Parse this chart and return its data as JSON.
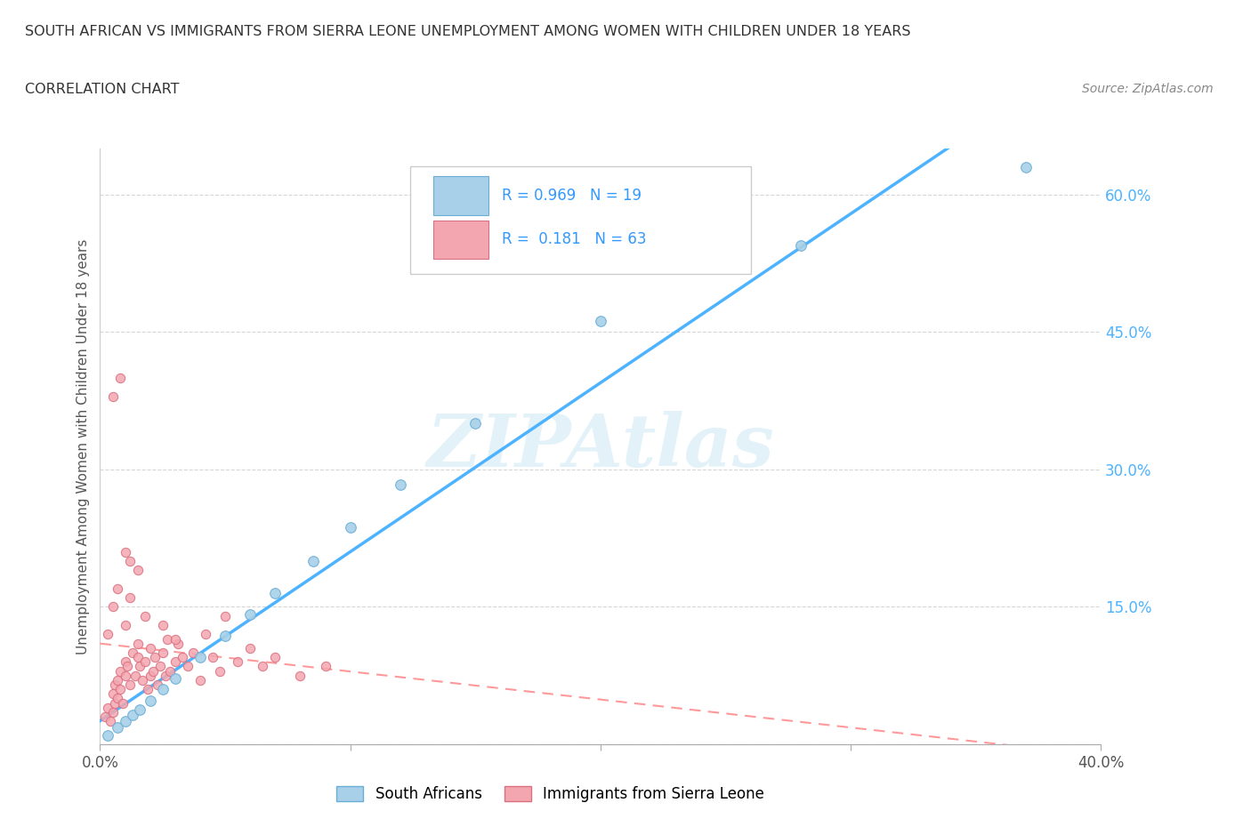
{
  "title": "SOUTH AFRICAN VS IMMIGRANTS FROM SIERRA LEONE UNEMPLOYMENT AMONG WOMEN WITH CHILDREN UNDER 18 YEARS",
  "subtitle": "CORRELATION CHART",
  "source": "Source: ZipAtlas.com",
  "ylabel": "Unemployment Among Women with Children Under 18 years",
  "xlim": [
    0.0,
    0.4
  ],
  "ylim": [
    0.0,
    0.65
  ],
  "xtick_vals": [
    0.0,
    0.1,
    0.2,
    0.3,
    0.4
  ],
  "ytick_vals": [
    0.0,
    0.15,
    0.3,
    0.45,
    0.6
  ],
  "series1_color": "#a8d0e8",
  "series1_edge": "#6aaed6",
  "series2_color": "#f4a6b0",
  "series2_edge": "#d97080",
  "trend1_color": "#4db3ff",
  "trend2_color": "#ff9999",
  "R1": "0.969",
  "N1": "19",
  "R2": "0.181",
  "N2": "63",
  "watermark": "ZIPAtlas",
  "background": "#ffffff",
  "legend1_label": "South Africans",
  "legend2_label": "Immigrants from Sierra Leone",
  "sa_x": [
    0.003,
    0.007,
    0.01,
    0.013,
    0.016,
    0.02,
    0.025,
    0.03,
    0.04,
    0.05,
    0.06,
    0.07,
    0.085,
    0.1,
    0.12,
    0.15,
    0.2,
    0.28,
    0.37
  ],
  "sa_y": [
    0.01,
    0.018,
    0.025,
    0.032,
    0.038,
    0.048,
    0.06,
    0.072,
    0.095,
    0.118,
    0.142,
    0.165,
    0.2,
    0.237,
    0.283,
    0.35,
    0.462,
    0.545,
    0.63
  ],
  "sl_x": [
    0.002,
    0.003,
    0.004,
    0.005,
    0.005,
    0.006,
    0.006,
    0.007,
    0.007,
    0.008,
    0.008,
    0.009,
    0.01,
    0.01,
    0.011,
    0.012,
    0.013,
    0.014,
    0.015,
    0.015,
    0.016,
    0.017,
    0.018,
    0.019,
    0.02,
    0.02,
    0.021,
    0.022,
    0.023,
    0.024,
    0.025,
    0.026,
    0.027,
    0.028,
    0.03,
    0.031,
    0.033,
    0.035,
    0.037,
    0.04,
    0.042,
    0.045,
    0.048,
    0.05,
    0.055,
    0.06,
    0.065,
    0.07,
    0.08,
    0.09,
    0.003,
    0.005,
    0.007,
    0.01,
    0.012,
    0.015,
    0.008,
    0.01,
    0.012,
    0.005,
    0.018,
    0.025,
    0.03
  ],
  "sl_y": [
    0.03,
    0.04,
    0.025,
    0.055,
    0.035,
    0.065,
    0.045,
    0.05,
    0.07,
    0.06,
    0.08,
    0.045,
    0.075,
    0.09,
    0.085,
    0.065,
    0.1,
    0.075,
    0.095,
    0.11,
    0.085,
    0.07,
    0.09,
    0.06,
    0.075,
    0.105,
    0.08,
    0.095,
    0.065,
    0.085,
    0.1,
    0.075,
    0.115,
    0.08,
    0.09,
    0.11,
    0.095,
    0.085,
    0.1,
    0.07,
    0.12,
    0.095,
    0.08,
    0.14,
    0.09,
    0.105,
    0.085,
    0.095,
    0.075,
    0.085,
    0.12,
    0.15,
    0.17,
    0.13,
    0.2,
    0.19,
    0.4,
    0.21,
    0.16,
    0.38,
    0.14,
    0.13,
    0.115
  ]
}
